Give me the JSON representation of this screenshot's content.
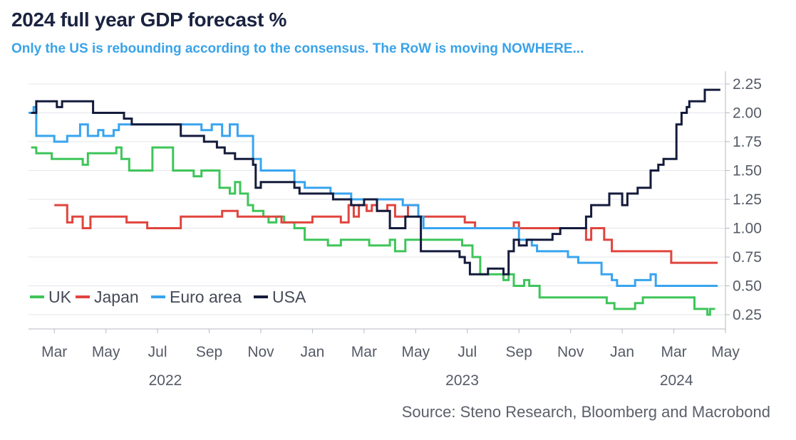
{
  "chart_data": {
    "type": "line",
    "title": "2024 full year GDP forecast %",
    "subtitle": "Only the US is rebounding according to the consensus. The RoW is moving NOWHERE...",
    "source": "Source: Steno Research, Bloomberg and Macrobond",
    "xlabel": "",
    "ylabel": "",
    "ylim": [
      0.2,
      2.3
    ],
    "x_unit": "months since Feb 2022",
    "xlim": [
      0,
      27
    ],
    "yticks": [
      "0.25",
      "0.50",
      "0.75",
      "1.00",
      "1.25",
      "1.50",
      "1.75",
      "2.00",
      "2.25"
    ],
    "xtick_labels": [
      {
        "label": "Mar",
        "x": 1
      },
      {
        "label": "May",
        "x": 3
      },
      {
        "label": "Jul",
        "x": 5
      },
      {
        "label": "Sep",
        "x": 7
      },
      {
        "label": "Nov",
        "x": 9
      },
      {
        "label": "Jan",
        "x": 11
      },
      {
        "label": "Mar",
        "x": 13
      },
      {
        "label": "May",
        "x": 15
      },
      {
        "label": "Jul",
        "x": 17
      },
      {
        "label": "Sep",
        "x": 19
      },
      {
        "label": "Nov",
        "x": 21
      },
      {
        "label": "Jan",
        "x": 23
      },
      {
        "label": "Mar",
        "x": 25
      },
      {
        "label": "May",
        "x": 27
      }
    ],
    "year_labels": [
      {
        "label": "2022",
        "x": 5.3
      },
      {
        "label": "2023",
        "x": 16.8
      },
      {
        "label": "2024",
        "x": 25.1
      }
    ],
    "legend": [
      "UK",
      "Japan",
      "Euro area",
      "USA"
    ],
    "series": [
      {
        "name": "UK",
        "color": "#3ec55a",
        "points": [
          [
            0.1,
            1.7
          ],
          [
            0.3,
            1.65
          ],
          [
            0.9,
            1.6
          ],
          [
            1.9,
            1.6
          ],
          [
            2.1,
            1.55
          ],
          [
            2.3,
            1.65
          ],
          [
            3.4,
            1.7
          ],
          [
            3.6,
            1.6
          ],
          [
            3.9,
            1.5
          ],
          [
            4.6,
            1.5
          ],
          [
            4.8,
            1.7
          ],
          [
            5.4,
            1.7
          ],
          [
            5.6,
            1.5
          ],
          [
            6.2,
            1.5
          ],
          [
            6.4,
            1.45
          ],
          [
            6.7,
            1.5
          ],
          [
            7.2,
            1.5
          ],
          [
            7.4,
            1.35
          ],
          [
            7.8,
            1.3
          ],
          [
            8.0,
            1.4
          ],
          [
            8.2,
            1.3
          ],
          [
            8.5,
            1.2
          ],
          [
            8.7,
            1.15
          ],
          [
            9.1,
            1.1
          ],
          [
            9.3,
            1.05
          ],
          [
            9.6,
            1.1
          ],
          [
            9.9,
            1.05
          ],
          [
            10.3,
            1.0
          ],
          [
            10.7,
            0.9
          ],
          [
            11.4,
            0.9
          ],
          [
            11.6,
            0.85
          ],
          [
            12.1,
            0.9
          ],
          [
            13.0,
            0.9
          ],
          [
            13.2,
            0.85
          ],
          [
            14.0,
            0.9
          ],
          [
            14.2,
            0.8
          ],
          [
            14.6,
            0.9
          ],
          [
            16.6,
            0.9
          ],
          [
            16.8,
            0.85
          ],
          [
            17.2,
            0.75
          ],
          [
            17.5,
            0.6
          ],
          [
            18.1,
            0.6
          ],
          [
            18.4,
            0.55
          ],
          [
            18.6,
            0.6
          ],
          [
            18.8,
            0.5
          ],
          [
            19.2,
            0.55
          ],
          [
            19.4,
            0.5
          ],
          [
            19.7,
            0.5
          ],
          [
            19.8,
            0.4
          ],
          [
            22.1,
            0.4
          ],
          [
            22.4,
            0.35
          ],
          [
            22.7,
            0.3
          ],
          [
            23.3,
            0.3
          ],
          [
            23.5,
            0.35
          ],
          [
            23.8,
            0.4
          ],
          [
            25.6,
            0.4
          ],
          [
            25.8,
            0.3
          ],
          [
            26.2,
            0.3
          ],
          [
            26.3,
            0.25
          ],
          [
            26.4,
            0.3
          ],
          [
            26.6,
            0.3
          ]
        ]
      },
      {
        "name": "Japan",
        "color": "#e0453e",
        "points": [
          [
            1.0,
            1.2
          ],
          [
            1.4,
            1.2
          ],
          [
            1.5,
            1.05
          ],
          [
            1.7,
            1.1
          ],
          [
            2.0,
            1.1
          ],
          [
            2.1,
            1.0
          ],
          [
            2.4,
            1.1
          ],
          [
            3.6,
            1.1
          ],
          [
            3.8,
            1.05
          ],
          [
            4.4,
            1.05
          ],
          [
            4.6,
            1.0
          ],
          [
            5.8,
            1.0
          ],
          [
            5.9,
            1.1
          ],
          [
            7.3,
            1.1
          ],
          [
            7.5,
            1.15
          ],
          [
            7.9,
            1.15
          ],
          [
            8.1,
            1.1
          ],
          [
            9.6,
            1.1
          ],
          [
            9.8,
            1.05
          ],
          [
            10.8,
            1.05
          ],
          [
            11.0,
            1.1
          ],
          [
            12.0,
            1.1
          ],
          [
            12.1,
            1.05
          ],
          [
            12.4,
            1.2
          ],
          [
            12.6,
            1.1
          ],
          [
            12.8,
            1.2
          ],
          [
            13.1,
            1.15
          ],
          [
            13.3,
            1.2
          ],
          [
            13.5,
            1.15
          ],
          [
            13.9,
            1.2
          ],
          [
            14.2,
            1.1
          ],
          [
            14.7,
            1.2
          ],
          [
            15.0,
            1.2
          ],
          [
            15.1,
            1.1
          ],
          [
            16.7,
            1.1
          ],
          [
            16.9,
            1.05
          ],
          [
            17.3,
            1.0
          ],
          [
            18.6,
            1.0
          ],
          [
            18.8,
            1.05
          ],
          [
            19.0,
            1.0
          ],
          [
            21.4,
            1.0
          ],
          [
            21.6,
            0.9
          ],
          [
            21.8,
            1.0
          ],
          [
            22.1,
            1.0
          ],
          [
            22.3,
            0.9
          ],
          [
            22.6,
            0.8
          ],
          [
            24.7,
            0.8
          ],
          [
            24.9,
            0.7
          ],
          [
            26.7,
            0.7
          ]
        ]
      },
      {
        "name": "Euro area",
        "color": "#38a4ef",
        "points": [
          [
            0.0,
            2.0
          ],
          [
            0.2,
            2.05
          ],
          [
            0.3,
            1.8
          ],
          [
            0.9,
            1.8
          ],
          [
            1.0,
            1.75
          ],
          [
            1.5,
            1.8
          ],
          [
            1.8,
            1.8
          ],
          [
            2.0,
            1.9
          ],
          [
            2.3,
            1.8
          ],
          [
            2.7,
            1.85
          ],
          [
            2.9,
            1.8
          ],
          [
            3.3,
            1.85
          ],
          [
            3.5,
            1.9
          ],
          [
            6.5,
            1.9
          ],
          [
            6.7,
            1.85
          ],
          [
            7.1,
            1.9
          ],
          [
            7.5,
            1.8
          ],
          [
            7.8,
            1.9
          ],
          [
            8.1,
            1.8
          ],
          [
            8.6,
            1.8
          ],
          [
            8.7,
            1.6
          ],
          [
            9.0,
            1.5
          ],
          [
            10.1,
            1.5
          ],
          [
            10.3,
            1.4
          ],
          [
            10.7,
            1.35
          ],
          [
            11.4,
            1.35
          ],
          [
            11.7,
            1.3
          ],
          [
            12.5,
            1.25
          ],
          [
            14.5,
            1.2
          ],
          [
            15.1,
            1.1
          ],
          [
            15.3,
            1.0
          ],
          [
            18.8,
            1.0
          ],
          [
            19.0,
            0.9
          ],
          [
            19.5,
            0.85
          ],
          [
            19.7,
            0.8
          ],
          [
            20.7,
            0.8
          ],
          [
            20.9,
            0.75
          ],
          [
            21.3,
            0.7
          ],
          [
            22.0,
            0.7
          ],
          [
            22.2,
            0.6
          ],
          [
            22.6,
            0.55
          ],
          [
            22.8,
            0.5
          ],
          [
            23.3,
            0.5
          ],
          [
            23.5,
            0.55
          ],
          [
            23.9,
            0.55
          ],
          [
            24.1,
            0.6
          ],
          [
            24.3,
            0.5
          ],
          [
            26.7,
            0.5
          ]
        ]
      },
      {
        "name": "USA",
        "color": "#141b3c",
        "points": [
          [
            0.1,
            2.0
          ],
          [
            0.3,
            2.1
          ],
          [
            1.0,
            2.1
          ],
          [
            1.1,
            2.05
          ],
          [
            1.3,
            2.1
          ],
          [
            2.4,
            2.1
          ],
          [
            2.5,
            2.0
          ],
          [
            3.6,
            2.0
          ],
          [
            3.7,
            1.95
          ],
          [
            4.0,
            1.9
          ],
          [
            5.8,
            1.9
          ],
          [
            5.9,
            1.8
          ],
          [
            6.6,
            1.8
          ],
          [
            6.8,
            1.75
          ],
          [
            7.3,
            1.7
          ],
          [
            7.6,
            1.65
          ],
          [
            8.0,
            1.6
          ],
          [
            8.7,
            1.55
          ],
          [
            8.8,
            1.35
          ],
          [
            9.0,
            1.4
          ],
          [
            10.2,
            1.4
          ],
          [
            10.3,
            1.35
          ],
          [
            10.5,
            1.3
          ],
          [
            11.6,
            1.3
          ],
          [
            11.8,
            1.25
          ],
          [
            12.5,
            1.2
          ],
          [
            12.8,
            1.2
          ],
          [
            13.0,
            1.25
          ],
          [
            13.5,
            1.15
          ],
          [
            14.0,
            1.0
          ],
          [
            14.4,
            1.0
          ],
          [
            14.6,
            1.1
          ],
          [
            15.1,
            1.1
          ],
          [
            15.2,
            0.8
          ],
          [
            15.4,
            0.8
          ],
          [
            16.7,
            0.75
          ],
          [
            16.9,
            0.7
          ],
          [
            17.1,
            0.6
          ],
          [
            17.3,
            0.6
          ],
          [
            17.6,
            0.6
          ],
          [
            17.8,
            0.65
          ],
          [
            18.4,
            0.6
          ],
          [
            18.6,
            0.8
          ],
          [
            18.8,
            0.9
          ],
          [
            19.0,
            0.85
          ],
          [
            19.3,
            0.9
          ],
          [
            20.1,
            0.9
          ],
          [
            20.3,
            0.95
          ],
          [
            20.6,
            1.0
          ],
          [
            21.2,
            1.0
          ],
          [
            21.4,
            1.0
          ],
          [
            21.6,
            1.1
          ],
          [
            21.8,
            1.2
          ],
          [
            22.3,
            1.2
          ],
          [
            22.5,
            1.3
          ],
          [
            22.8,
            1.3
          ],
          [
            23.0,
            1.2
          ],
          [
            23.2,
            1.3
          ],
          [
            23.6,
            1.35
          ],
          [
            24.1,
            1.5
          ],
          [
            24.4,
            1.55
          ],
          [
            24.6,
            1.6
          ],
          [
            24.9,
            1.6
          ],
          [
            25.1,
            1.9
          ],
          [
            25.3,
            2.0
          ],
          [
            25.5,
            2.05
          ],
          [
            25.6,
            2.1
          ],
          [
            26.0,
            2.1
          ],
          [
            26.2,
            2.2
          ],
          [
            26.5,
            2.2
          ],
          [
            26.8,
            2.2
          ]
        ]
      }
    ]
  }
}
